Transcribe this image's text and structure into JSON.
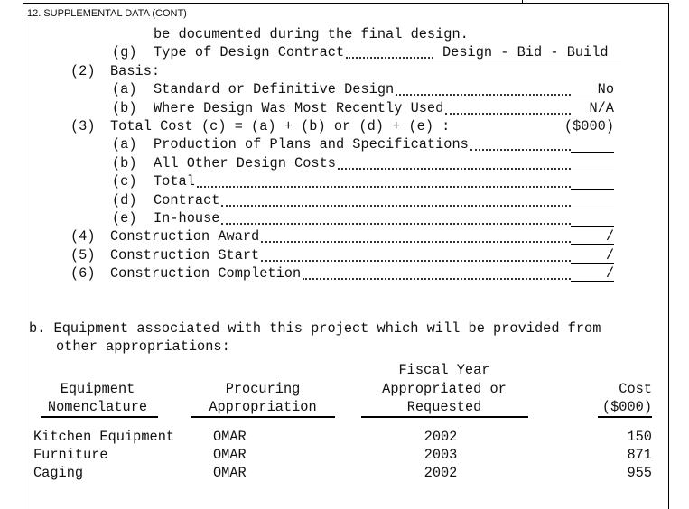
{
  "header": {
    "section": "12. SUPPLEMENTAL DATA (CONT)"
  },
  "design": {
    "continuation": "be documented during the final design.",
    "lines": [
      {
        "marker": "(g)",
        "label": "Type of Design Contract",
        "value": "Design - Bid - Build"
      },
      {
        "marker": "(2)",
        "label": "Basis:"
      },
      {
        "marker": "(a)",
        "label": "Standard or Definitive Design",
        "value": "No"
      },
      {
        "marker": "(b)",
        "label": "Where Design Was Most Recently Used",
        "value": "N/A"
      },
      {
        "marker": "(3)",
        "label": "Total Cost (c) = (a) + (b) or (d) + (e) :",
        "unit": "($000)"
      },
      {
        "marker": "(a)",
        "label": "Production of Plans and Specifications",
        "value": null
      },
      {
        "marker": "(b)",
        "label": "All Other Design Costs",
        "value": null
      },
      {
        "marker": "(c)",
        "label": "Total",
        "value": null
      },
      {
        "marker": "(d)",
        "label": "Contract",
        "value": null
      },
      {
        "marker": "(e)",
        "label": "In-house",
        "value": null
      },
      {
        "marker": "(4)",
        "label": "Construction Award",
        "value": "/"
      },
      {
        "marker": "(5)",
        "label": "Construction Start",
        "value": "/"
      },
      {
        "marker": "(6)",
        "label": "Construction Completion",
        "value": "/"
      }
    ]
  },
  "equipment": {
    "intro": [
      "b. Equipment associated with this project which will be provided from",
      "other appropriations:"
    ],
    "columns": [
      [
        "Equipment",
        "Nomenclature"
      ],
      [
        "Procuring",
        "Appropriation"
      ],
      [
        "Fiscal Year",
        "Appropriated or",
        "Requested"
      ],
      [
        "Cost",
        "($000)"
      ]
    ],
    "rows": [
      [
        "Kitchen Equipment",
        "OMAR",
        "2002",
        "150"
      ],
      [
        "Furniture",
        "OMAR",
        "2003",
        "871"
      ],
      [
        "Caging",
        "OMAR",
        "2002",
        "955"
      ]
    ]
  }
}
